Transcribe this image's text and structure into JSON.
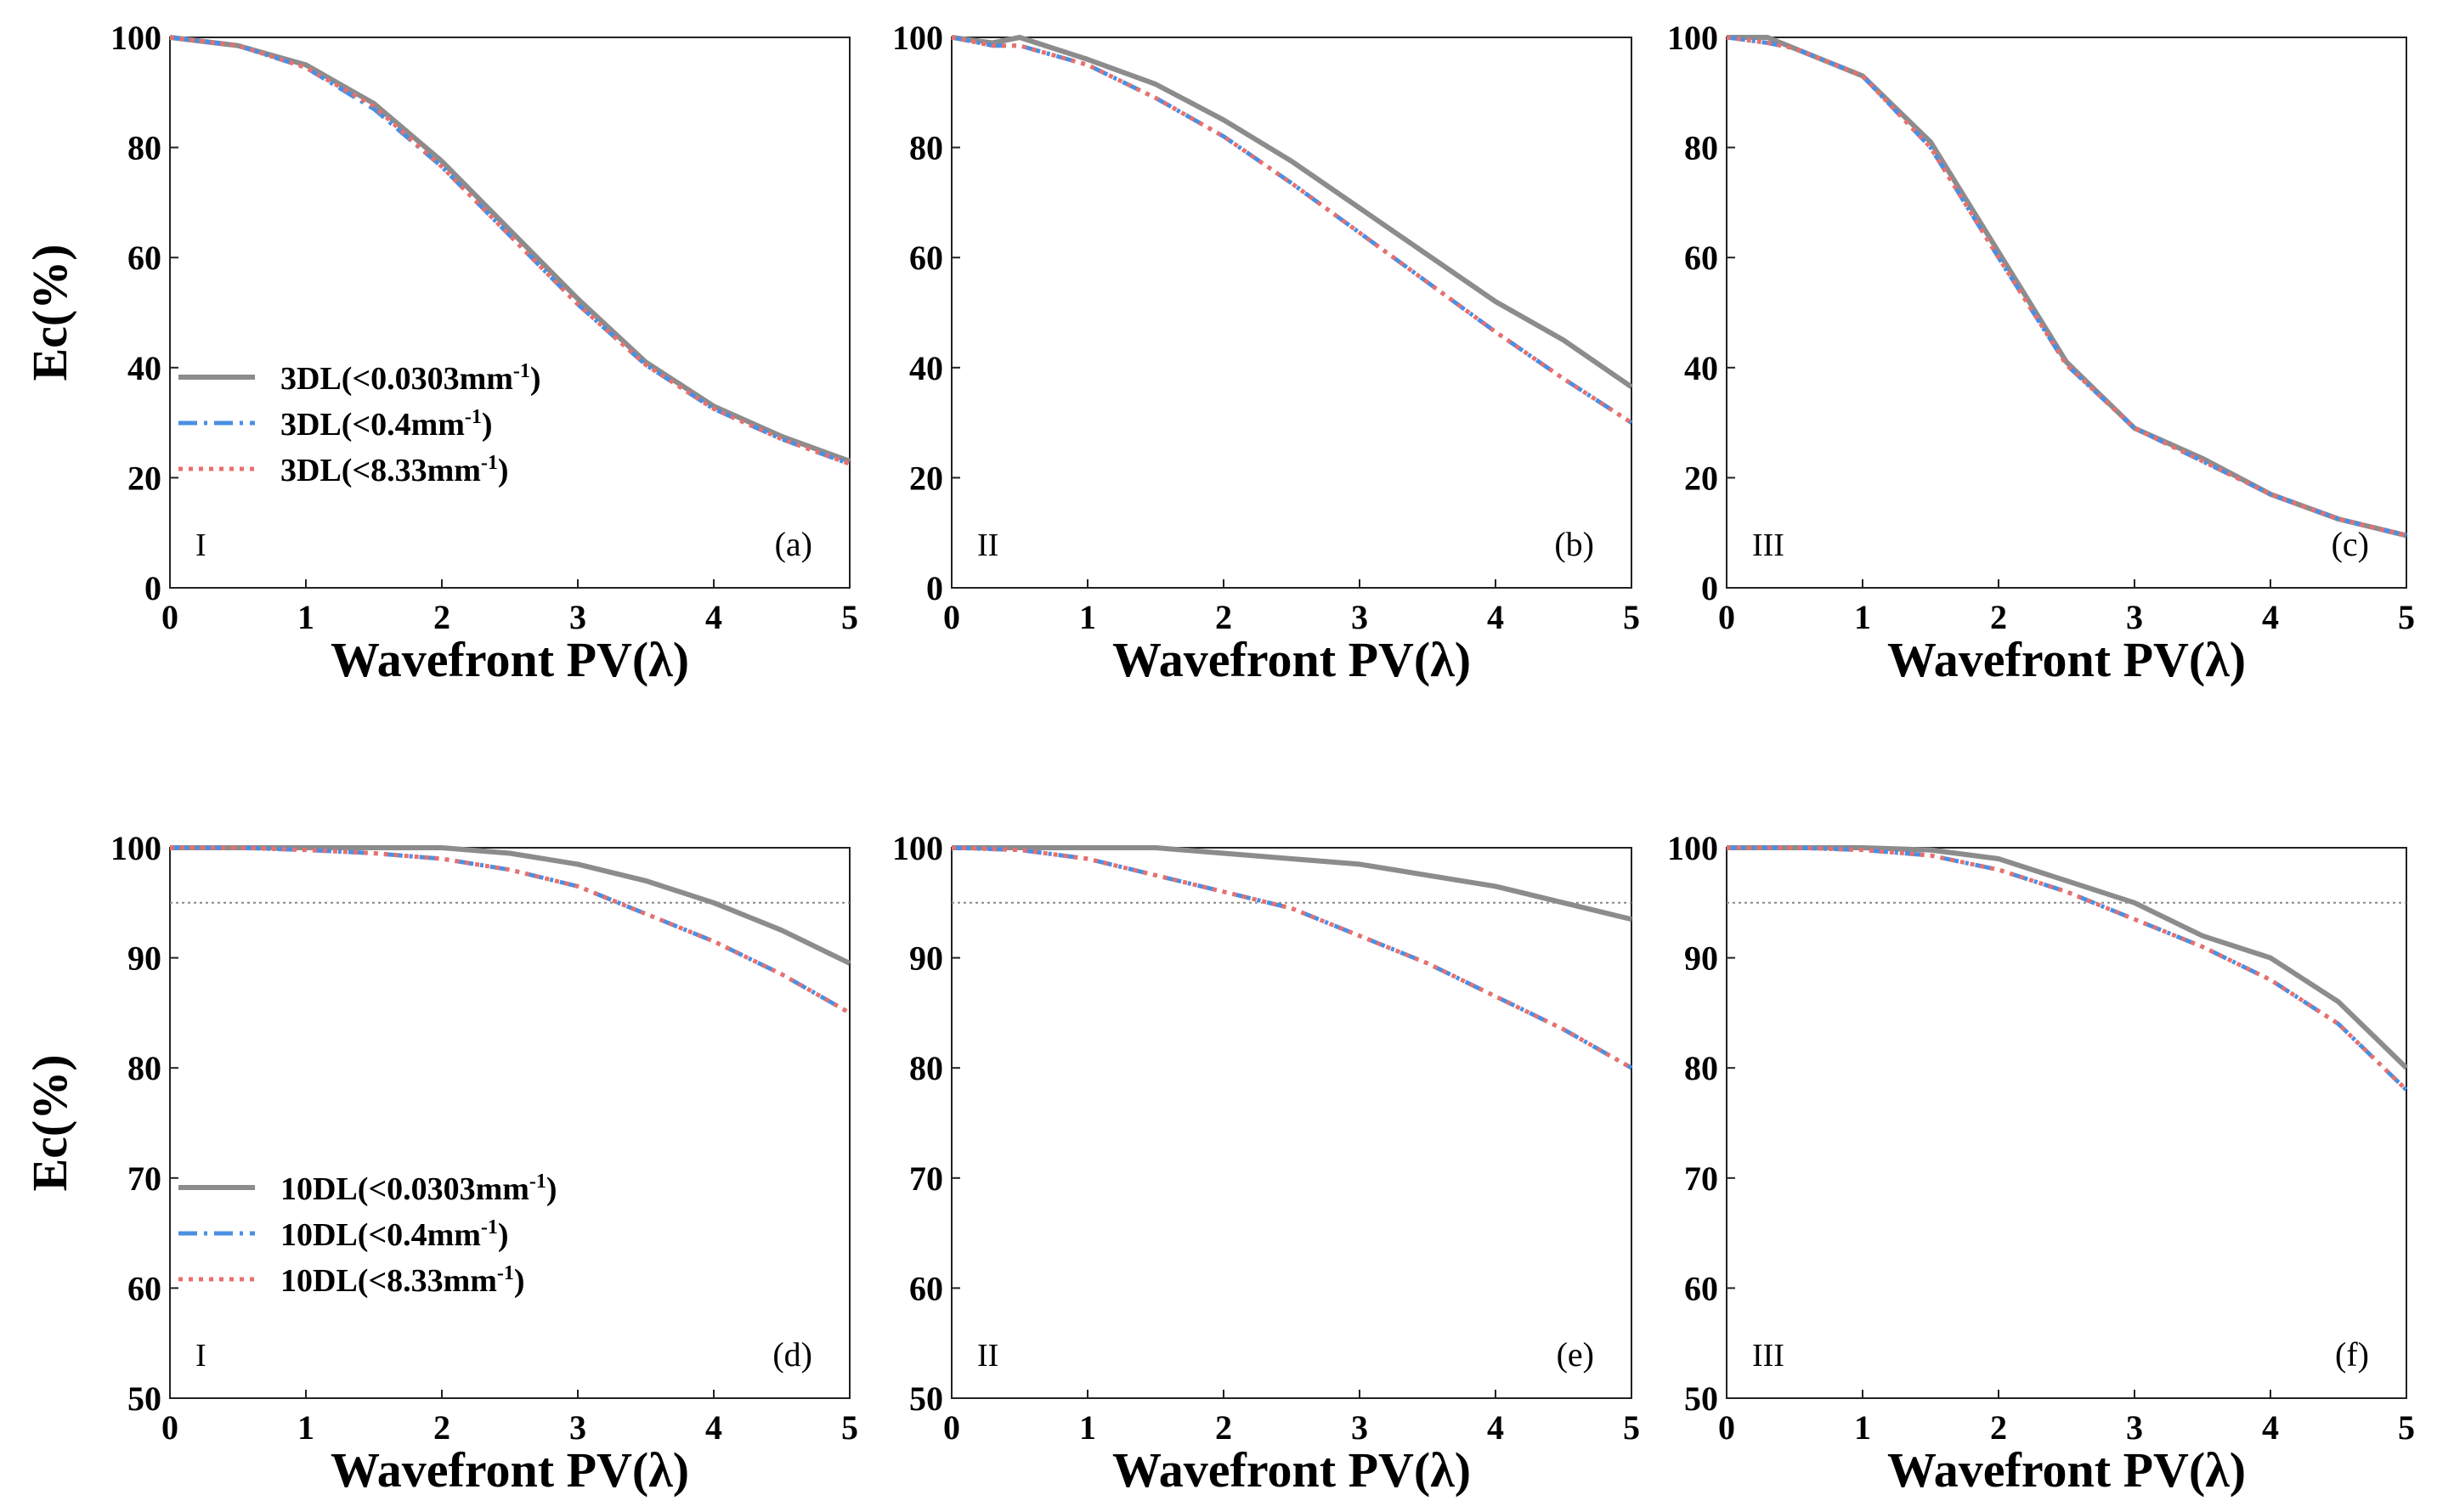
{
  "figure": {
    "shared_xlabel": "Wavefront PV(λ)",
    "shared_ylabel": "Ec(%)"
  },
  "styles": {
    "solid": {
      "color": "#8c8c8c",
      "dash": ""
    },
    "dashdot": {
      "color": "#4a90e2",
      "dash": "22 8 4 8"
    },
    "dotted": {
      "color": "#e8706e",
      "dash": "5 7"
    },
    "ref_line": {
      "color": "#888888",
      "dash": "3 4"
    }
  },
  "chart_data": [
    {
      "id": "a",
      "type": "line",
      "panel_label": "(a)",
      "zone": "I",
      "xlabel": "Wavefront PV(λ)",
      "ylabel": "Ec(%)",
      "xlim": [
        0,
        5
      ],
      "ylim": [
        0,
        100
      ],
      "xticks": [
        "0",
        "1",
        "2",
        "3",
        "4",
        "5"
      ],
      "yticks": [
        "0",
        "20",
        "40",
        "60",
        "80",
        "100"
      ],
      "legend": [
        {
          "prefix": "3DL(<0.0303mm",
          "sup": "-1",
          "suffix": ")",
          "style": "solid"
        },
        {
          "prefix": "3DL(<0.4mm",
          "sup": "-1",
          "suffix": ")",
          "style": "dashdot"
        },
        {
          "prefix": "3DL(<8.33mm",
          "sup": "-1",
          "suffix": ")",
          "style": "dotted"
        }
      ],
      "x": [
        0,
        0.5,
        1,
        1.5,
        2,
        2.5,
        3,
        3.5,
        4,
        4.5,
        5
      ],
      "series": [
        {
          "name": "3DL(<0.0303mm-1)",
          "style": "solid",
          "values": [
            100,
            98.5,
            95,
            88,
            77.5,
            65,
            52.5,
            41,
            33,
            27.5,
            23
          ]
        },
        {
          "name": "3DL(<0.4mm-1)",
          "style": "dashdot",
          "values": [
            100,
            98.5,
            94.5,
            87,
            76.5,
            64,
            51.5,
            40.5,
            32.5,
            27,
            22.5
          ]
        },
        {
          "name": "3DL(<8.33mm-1)",
          "style": "dotted",
          "values": [
            100,
            98.5,
            94.5,
            87.5,
            76.5,
            64,
            51.5,
            40.5,
            32.5,
            27,
            22.5
          ]
        }
      ]
    },
    {
      "id": "b",
      "type": "line",
      "panel_label": "(b)",
      "zone": "II",
      "xlabel": "Wavefront PV(λ)",
      "ylabel": "",
      "xlim": [
        0,
        5
      ],
      "ylim": [
        0,
        100
      ],
      "xticks": [
        "0",
        "1",
        "2",
        "3",
        "4",
        "5"
      ],
      "yticks": [
        "0",
        "20",
        "40",
        "60",
        "80",
        "100"
      ],
      "x": [
        0,
        0.3,
        0.5,
        1,
        1.5,
        2,
        2.5,
        3,
        3.5,
        4,
        4.5,
        5
      ],
      "series": [
        {
          "name": "3DL(<0.0303mm-1)",
          "style": "solid",
          "values": [
            100,
            99,
            100,
            96,
            91.5,
            85,
            77.5,
            69,
            60.5,
            52,
            45,
            36.5
          ]
        },
        {
          "name": "3DL(<0.4mm-1)",
          "style": "dashdot",
          "values": [
            100,
            98.5,
            98.5,
            95,
            89,
            82,
            73.5,
            64.5,
            55.5,
            46.5,
            38,
            30
          ]
        },
        {
          "name": "3DL(<8.33mm-1)",
          "style": "dotted",
          "values": [
            100,
            98.5,
            98.5,
            95,
            89,
            82,
            73.5,
            64.5,
            55.5,
            46.5,
            38,
            30
          ]
        }
      ]
    },
    {
      "id": "c",
      "type": "line",
      "panel_label": "(c)",
      "zone": "III",
      "xlabel": "Wavefront PV(λ)",
      "ylabel": "",
      "xlim": [
        0,
        5
      ],
      "ylim": [
        0,
        100
      ],
      "xticks": [
        "0",
        "1",
        "2",
        "3",
        "4",
        "5"
      ],
      "yticks": [
        "0",
        "20",
        "40",
        "60",
        "80",
        "100"
      ],
      "x": [
        0,
        0.3,
        0.5,
        1,
        1.5,
        2,
        2.5,
        3,
        3.5,
        4,
        4.5,
        5
      ],
      "series": [
        {
          "name": "3DL(<0.0303mm-1)",
          "style": "solid",
          "values": [
            100,
            100,
            98,
            93,
            81,
            61,
            41,
            29,
            23.5,
            17,
            12.5,
            9.5
          ]
        },
        {
          "name": "3DL(<0.4mm-1)",
          "style": "dashdot",
          "values": [
            100,
            99,
            98,
            93,
            80,
            60,
            40.5,
            29,
            23,
            17,
            12.5,
            9.5
          ]
        },
        {
          "name": "3DL(<8.33mm-1)",
          "style": "dotted",
          "values": [
            100,
            99,
            98,
            93,
            80,
            60,
            40.5,
            29,
            23,
            17,
            12.5,
            9.5
          ]
        }
      ]
    },
    {
      "id": "d",
      "type": "line",
      "panel_label": "(d)",
      "zone": "I",
      "xlabel": "Wavefront PV(λ)",
      "ylabel": "Ec(%)",
      "xlim": [
        0,
        5
      ],
      "ylim": [
        50,
        100
      ],
      "ref_y": 95,
      "xticks": [
        "0",
        "1",
        "2",
        "3",
        "4",
        "5"
      ],
      "yticks": [
        "50",
        "60",
        "70",
        "80",
        "90",
        "100"
      ],
      "legend": [
        {
          "prefix": "10DL(<0.0303mm",
          "sup": "-1",
          "suffix": ")",
          "style": "solid"
        },
        {
          "prefix": "10DL(<0.4mm",
          "sup": "-1",
          "suffix": ")",
          "style": "dashdot"
        },
        {
          "prefix": "10DL(<8.33mm",
          "sup": "-1",
          "suffix": ")",
          "style": "dotted"
        }
      ],
      "x": [
        0,
        0.5,
        1,
        1.5,
        2,
        2.5,
        3,
        3.5,
        4,
        4.5,
        5
      ],
      "series": [
        {
          "name": "10DL(<0.0303mm-1)",
          "style": "solid",
          "values": [
            100,
            100,
            100,
            100,
            100,
            99.5,
            98.5,
            97,
            95,
            92.5,
            89.5
          ]
        },
        {
          "name": "10DL(<0.4mm-1)",
          "style": "dashdot",
          "values": [
            100,
            100,
            99.8,
            99.5,
            99,
            98,
            96.5,
            94,
            91.5,
            88.5,
            85
          ]
        },
        {
          "name": "10DL(<8.33mm-1)",
          "style": "dotted",
          "values": [
            100,
            100,
            99.8,
            99.5,
            99,
            98,
            96.5,
            94,
            91.5,
            88.5,
            85
          ]
        }
      ]
    },
    {
      "id": "e",
      "type": "line",
      "panel_label": "(e)",
      "zone": "II",
      "xlabel": "Wavefront PV(λ)",
      "ylabel": "",
      "xlim": [
        0,
        5
      ],
      "ylim": [
        50,
        100
      ],
      "ref_y": 95,
      "xticks": [
        "0",
        "1",
        "2",
        "3",
        "4",
        "5"
      ],
      "yticks": [
        "50",
        "60",
        "70",
        "80",
        "90",
        "100"
      ],
      "x": [
        0,
        0.5,
        1,
        1.5,
        2,
        2.5,
        3,
        3.5,
        4,
        4.5,
        5
      ],
      "series": [
        {
          "name": "10DL(<0.0303mm-1)",
          "style": "solid",
          "values": [
            100,
            100,
            100,
            100,
            99.5,
            99,
            98.5,
            97.5,
            96.5,
            95,
            93.5
          ]
        },
        {
          "name": "10DL(<0.4mm-1)",
          "style": "dashdot",
          "values": [
            100,
            99.8,
            99,
            97.5,
            96,
            94.5,
            92,
            89.5,
            86.5,
            83.5,
            80
          ]
        },
        {
          "name": "10DL(<8.33mm-1)",
          "style": "dotted",
          "values": [
            100,
            99.8,
            99,
            97.5,
            96,
            94.5,
            92,
            89.5,
            86.5,
            83.5,
            80
          ]
        }
      ]
    },
    {
      "id": "f",
      "type": "line",
      "panel_label": "(f)",
      "zone": "III",
      "xlabel": "Wavefront PV(λ)",
      "ylabel": "",
      "xlim": [
        0,
        5
      ],
      "ylim": [
        50,
        100
      ],
      "ref_y": 95,
      "xticks": [
        "0",
        "1",
        "2",
        "3",
        "4",
        "5"
      ],
      "yticks": [
        "50",
        "60",
        "70",
        "80",
        "90",
        "100"
      ],
      "x": [
        0,
        0.5,
        1,
        1.5,
        2,
        2.5,
        3,
        3.5,
        4,
        4.5,
        5
      ],
      "series": [
        {
          "name": "10DL(<0.0303mm-1)",
          "style": "solid",
          "values": [
            100,
            100,
            100,
            99.8,
            99,
            97,
            95,
            92,
            90,
            86,
            80
          ]
        },
        {
          "name": "10DL(<0.4mm-1)",
          "style": "dashdot",
          "values": [
            100,
            100,
            99.8,
            99.3,
            98,
            96,
            93.5,
            91,
            88,
            84,
            78
          ]
        },
        {
          "name": "10DL(<8.33mm-1)",
          "style": "dotted",
          "values": [
            100,
            100,
            99.8,
            99.3,
            98,
            96,
            93.5,
            91,
            88,
            84,
            78
          ]
        }
      ]
    }
  ]
}
